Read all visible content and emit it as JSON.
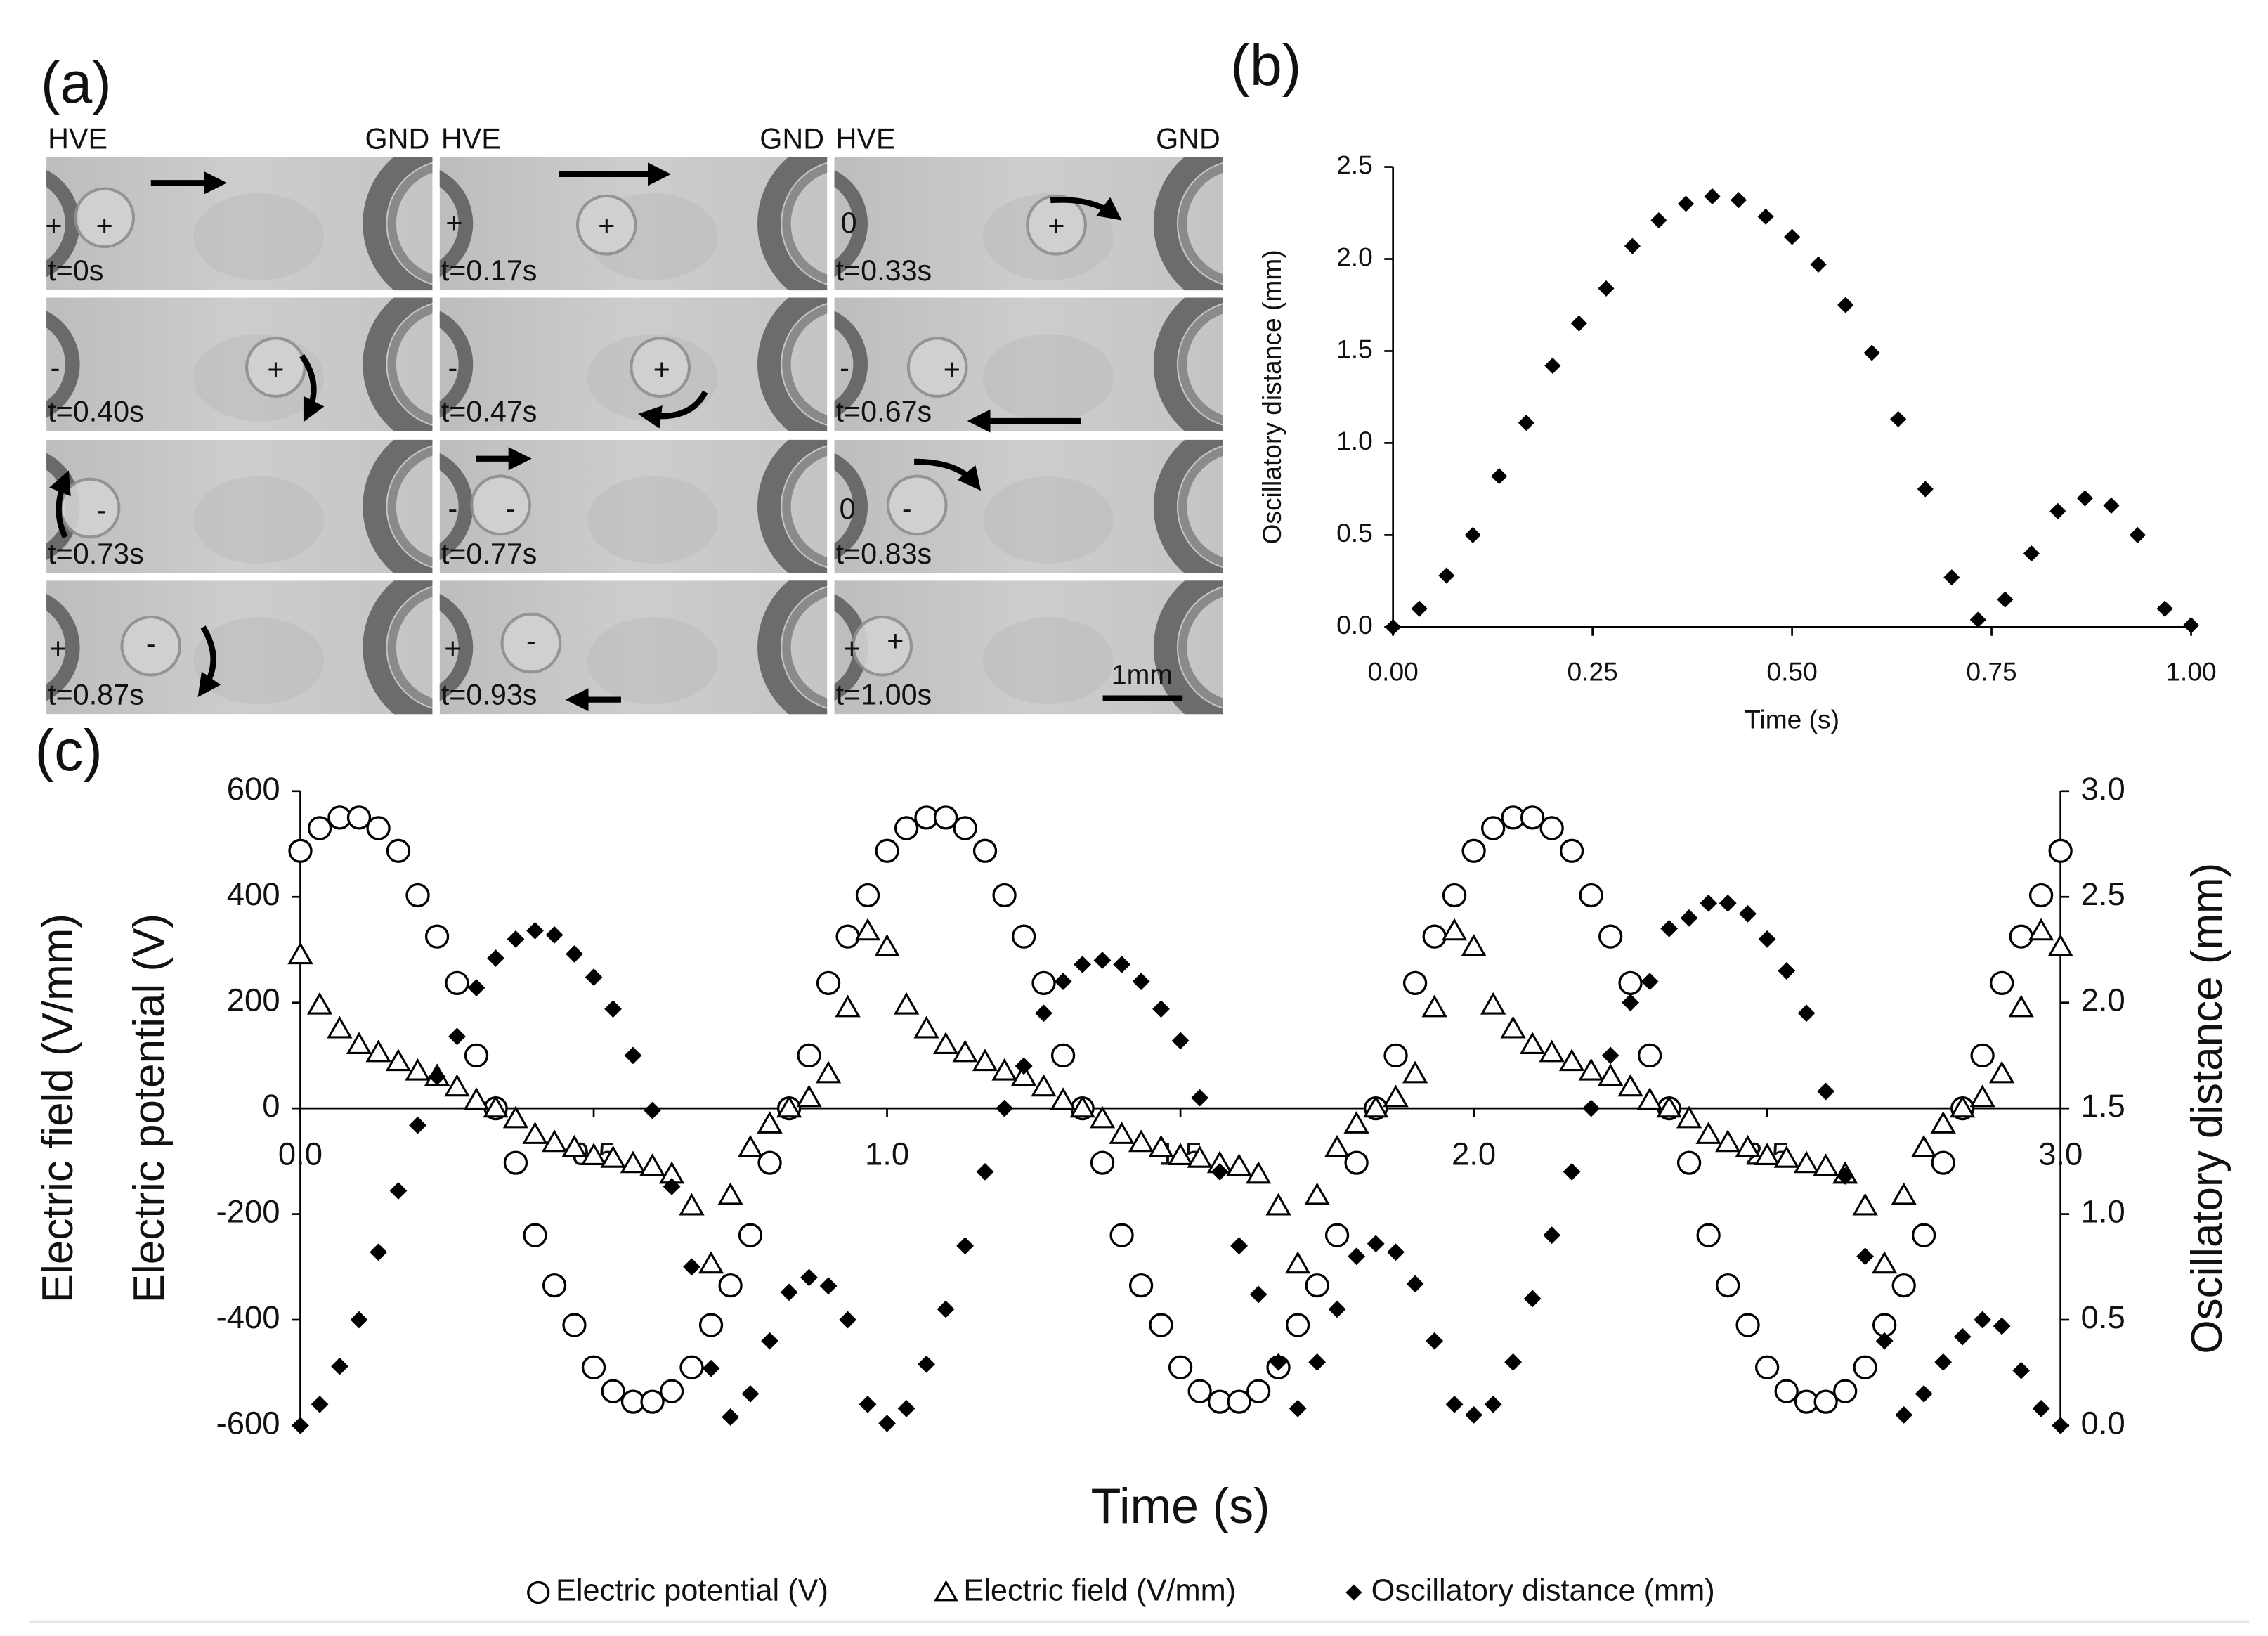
{
  "panel_a": {
    "label": "(a)",
    "electrodes": [
      "HVE",
      "GND",
      "HVE",
      "GND",
      "HVE",
      "GND"
    ],
    "frames": [
      {
        "time": "t=0s",
        "signs": [
          "+",
          "+"
        ]
      },
      {
        "time": "t=0.17s",
        "signs": [
          "+",
          "+"
        ]
      },
      {
        "time": "t=0.33s",
        "signs": [
          "0",
          "+"
        ]
      },
      {
        "time": "t=0.40s",
        "signs": [
          "-",
          "+"
        ]
      },
      {
        "time": "t=0.47s",
        "signs": [
          "-",
          "+"
        ]
      },
      {
        "time": "t=0.67s",
        "signs": [
          "-",
          "+"
        ]
      },
      {
        "time": "t=0.73s",
        "signs": [
          "-"
        ]
      },
      {
        "time": "t=0.77s",
        "signs": [
          "-",
          "-"
        ]
      },
      {
        "time": "t=0.83s",
        "signs": [
          "0",
          "-"
        ]
      },
      {
        "time": "t=0.87s",
        "signs": [
          "+",
          "-"
        ]
      },
      {
        "time": "t=0.93s",
        "signs": [
          "+",
          "-"
        ]
      },
      {
        "time": "t=1.00s",
        "signs": [
          "+",
          "+"
        ]
      }
    ],
    "scale_bar": "1mm"
  },
  "chart_data": [
    {
      "type": "scatter",
      "label": "(b)",
      "xlabel": "Time (s)",
      "ylabel": "Oscillatory distance (mm)",
      "x": [
        0,
        0.033,
        0.067,
        0.1,
        0.133,
        0.167,
        0.2,
        0.233,
        0.267,
        0.3,
        0.333,
        0.367,
        0.4,
        0.433,
        0.467,
        0.5,
        0.533,
        0.567,
        0.6,
        0.633,
        0.667,
        0.7,
        0.733,
        0.767,
        0.8,
        0.833,
        0.867,
        0.9,
        0.933,
        0.967,
        1.0
      ],
      "series": [
        {
          "color": "#000000",
          "marker": "diamond",
          "values": [
            0,
            0.1,
            0.28,
            0.5,
            0.82,
            1.11,
            1.42,
            1.65,
            1.84,
            2.07,
            2.21,
            2.3,
            2.34,
            2.32,
            2.23,
            2.12,
            1.97,
            1.75,
            1.49,
            1.13,
            0.75,
            0.27,
            0.04,
            0.15,
            0.4,
            0.63,
            0.7,
            0.66,
            0.5,
            0.1,
            0.01
          ]
        }
      ],
      "xlim": [
        0,
        1
      ],
      "xticks": [
        {
          "value": 0,
          "label": "0.00"
        },
        {
          "value": 0.25,
          "label": "0.25"
        },
        {
          "value": 0.5,
          "label": "0.50"
        },
        {
          "value": 0.75,
          "label": "0.75"
        },
        {
          "value": 1,
          "label": "1.00"
        }
      ],
      "ylim": [
        0,
        2.5
      ],
      "yticks": [
        {
          "value": 0,
          "label": "0.0"
        },
        0.5,
        {
          "value": 1,
          "label": "1.0"
        },
        1.5,
        {
          "value": 2,
          "label": "2.0"
        },
        2.5
      ]
    },
    {
      "type": "scatter",
      "label": "(c)",
      "xlabel": "Time (s)",
      "ylabel": [
        "Electric field (V/mm)",
        "Electric potential (V)"
      ],
      "y2label": "Oscillatory distance (mm)",
      "x": [
        0,
        0.033,
        0.067,
        0.1,
        0.133,
        0.167,
        0.2,
        0.233,
        0.267,
        0.3,
        0.333,
        0.367,
        0.4,
        0.433,
        0.467,
        0.5,
        0.533,
        0.567,
        0.6,
        0.633,
        0.667,
        0.7,
        0.733,
        0.767,
        0.8,
        0.833,
        0.867,
        0.9,
        0.933,
        0.967,
        1.0,
        1.033,
        1.067,
        1.1,
        1.133,
        1.167,
        1.2,
        1.233,
        1.267,
        1.3,
        1.333,
        1.367,
        1.4,
        1.433,
        1.467,
        1.5,
        1.533,
        1.567,
        1.6,
        1.633,
        1.667,
        1.7,
        1.733,
        1.767,
        1.8,
        1.833,
        1.867,
        1.9,
        1.933,
        1.967,
        2.0,
        2.033,
        2.067,
        2.1,
        2.133,
        2.167,
        2.2,
        2.233,
        2.267,
        2.3,
        2.333,
        2.367,
        2.4,
        2.433,
        2.467,
        2.5,
        2.533,
        2.567,
        2.6,
        2.633,
        2.667,
        2.7,
        2.733,
        2.767,
        2.8,
        2.833,
        2.867,
        2.9,
        2.933,
        2.967,
        3.0
      ],
      "series": [
        {
          "name": "Electric potential (V)",
          "color": "#000000",
          "marker": "circle",
          "values": [
            487,
            530,
            550,
            550,
            530,
            487,
            403,
            325,
            237,
            100,
            0,
            -103,
            -240,
            -335,
            -410,
            -490,
            -535,
            -555,
            -555,
            -535,
            -490,
            -410,
            -335,
            -240,
            -103,
            0,
            100,
            237,
            325,
            403,
            487,
            530,
            550,
            550,
            530,
            487,
            403,
            325,
            237,
            100,
            0,
            -103,
            -240,
            -335,
            -410,
            -490,
            -535,
            -555,
            -555,
            -535,
            -490,
            -410,
            -335,
            -240,
            -103,
            0,
            100,
            237,
            325,
            403,
            487,
            530,
            550,
            550,
            530,
            487,
            403,
            325,
            237,
            100,
            0,
            -103,
            -240,
            -335,
            -410,
            -490,
            -535,
            -555,
            -555,
            -535,
            -490,
            -410,
            -335,
            -240,
            -103,
            0,
            100,
            237,
            325,
            403,
            487
          ]
        },
        {
          "name": "Electric field (V/mm)",
          "color": "#000000",
          "marker": "triangle",
          "values": [
            290,
            195,
            150,
            120,
            105,
            88,
            70,
            60,
            40,
            15,
            0,
            -20,
            -50,
            -65,
            -75,
            -90,
            -95,
            -105,
            -110,
            -125,
            -185,
            -295,
            -165,
            -75,
            -30,
            0,
            20,
            65,
            190,
            335,
            305,
            195,
            150,
            120,
            105,
            88,
            70,
            60,
            40,
            15,
            0,
            -20,
            -50,
            -65,
            -75,
            -90,
            -95,
            -105,
            -110,
            -125,
            -185,
            -295,
            -165,
            -75,
            -30,
            0,
            20,
            65,
            190,
            335,
            305,
            195,
            150,
            120,
            105,
            88,
            70,
            60,
            40,
            15,
            0,
            -20,
            -50,
            -65,
            -75,
            -90,
            -95,
            -105,
            -110,
            -125,
            -185,
            -295,
            -165,
            -75,
            -30,
            0,
            20,
            65,
            190,
            335,
            305
          ]
        },
        {
          "name": "Oscillatory distance (mm)",
          "color": "#000000",
          "marker": "diamond",
          "axis": "y2",
          "values": [
            0,
            0.1,
            0.28,
            0.5,
            0.82,
            1.11,
            1.42,
            1.65,
            1.84,
            2.07,
            2.21,
            2.3,
            2.34,
            2.32,
            2.23,
            2.12,
            1.97,
            1.75,
            1.49,
            1.13,
            0.75,
            0.27,
            0.04,
            0.15,
            0.4,
            0.63,
            0.7,
            0.66,
            0.5,
            0.1,
            0.01,
            0.08,
            0.29,
            0.55,
            0.85,
            1.2,
            1.5,
            1.7,
            1.95,
            2.1,
            2.18,
            2.2,
            2.18,
            2.1,
            1.97,
            1.82,
            1.55,
            1.2,
            0.85,
            0.62,
            0.3,
            0.08,
            0.3,
            0.55,
            0.8,
            0.86,
            0.82,
            0.67,
            0.4,
            0.1,
            0.05,
            0.1,
            0.3,
            0.6,
            0.9,
            1.2,
            1.5,
            1.75,
            2.0,
            2.1,
            2.35,
            2.4,
            2.47,
            2.47,
            2.42,
            2.3,
            2.15,
            1.95,
            1.58,
            1.18,
            0.8,
            0.4,
            0.05,
            0.15,
            0.3,
            0.42,
            0.5,
            0.47,
            0.26,
            0.08,
            0.0
          ]
        }
      ],
      "xlim": [
        0,
        3
      ],
      "xticks": [
        {
          "value": 0,
          "label": "0.0"
        },
        0.5,
        {
          "value": 1,
          "label": "1.0"
        },
        1.5,
        {
          "value": 2,
          "label": "2.0"
        },
        2.5,
        {
          "value": 3,
          "label": "3.0"
        }
      ],
      "ylim": [
        -600,
        600
      ],
      "yticks": [
        -600,
        -400,
        -200,
        0,
        200,
        400,
        600
      ],
      "y2lim": [
        0,
        3
      ],
      "y2ticks": [
        {
          "value": 0,
          "label": "0.0"
        },
        0.5,
        {
          "value": 1,
          "label": "1.0"
        },
        1.5,
        {
          "value": 2,
          "label": "2.0"
        },
        2.5,
        {
          "value": 3,
          "label": "3.0"
        }
      ]
    }
  ]
}
